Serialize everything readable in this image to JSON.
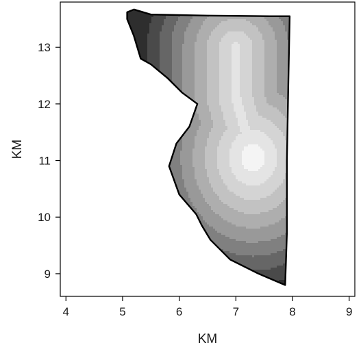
{
  "chart_data": {
    "type": "heatmap",
    "title": "",
    "xlabel": "KM",
    "ylabel": "KM",
    "xlim": [
      3.9,
      9.1
    ],
    "ylim": [
      8.6,
      13.8
    ],
    "x_ticks": [
      4,
      5,
      6,
      7,
      8,
      9
    ],
    "y_ticks": [
      9,
      10,
      11,
      12,
      13
    ],
    "grid": false,
    "legend": "none",
    "colors": {
      "levels": [
        "#2e2e2e",
        "#4a4a4a",
        "#666666",
        "#808080",
        "#999999",
        "#aeaeae",
        "#c2c2c2",
        "#d4d4d4",
        "#e4e4e4",
        "#f4f4f4"
      ],
      "outline": "#000000",
      "background": "#ffffff",
      "axis": "#000000"
    },
    "boundary": [
      [
        5.08,
        13.62
      ],
      [
        5.2,
        13.67
      ],
      [
        5.5,
        13.58
      ],
      [
        6.5,
        13.56
      ],
      [
        7.6,
        13.55
      ],
      [
        7.95,
        13.55
      ],
      [
        7.93,
        12.6
      ],
      [
        7.9,
        11.0
      ],
      [
        7.9,
        9.7
      ],
      [
        7.87,
        8.8
      ],
      [
        7.4,
        9.0
      ],
      [
        6.9,
        9.25
      ],
      [
        6.55,
        9.6
      ],
      [
        6.4,
        9.85
      ],
      [
        6.3,
        10.05
      ],
      [
        6.0,
        10.4
      ],
      [
        5.82,
        10.9
      ],
      [
        5.95,
        11.3
      ],
      [
        6.18,
        11.6
      ],
      [
        6.32,
        12.0
      ],
      [
        6.05,
        12.2
      ],
      [
        5.8,
        12.45
      ],
      [
        5.5,
        12.7
      ],
      [
        5.32,
        12.8
      ],
      [
        5.2,
        13.2
      ],
      [
        5.08,
        13.5
      ]
    ],
    "surface": {
      "peak_x": 7.3,
      "peak_y": 11.05,
      "value_at_peak": 1.0,
      "levels_count": 10,
      "ridge": [
        [
          7.3,
          11.05
        ],
        [
          7.0,
          12.1
        ],
        [
          7.0,
          13.0
        ]
      ]
    }
  }
}
